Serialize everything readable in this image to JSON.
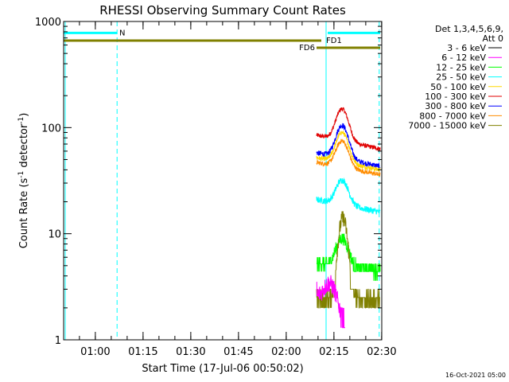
{
  "chart_data": {
    "type": "line",
    "title": "RHESSI Observing Summary Count Rates",
    "xlabel": "Start Time (17-Jul-06 00:50:02)",
    "ylabel_main": "Count Rate (s",
    "ylabel_sup1": "-1",
    "ylabel_mid": " detector",
    "ylabel_sup2": "-1",
    "ylabel_end": ")",
    "yscale": "log",
    "ylim": [
      1,
      1000
    ],
    "xlim_minutes": [
      0,
      100
    ],
    "yticks": [
      {
        "value": 1,
        "label": "1"
      },
      {
        "value": 10,
        "label": "10"
      },
      {
        "value": 100,
        "label": "100"
      },
      {
        "value": 1000,
        "label": "1000"
      }
    ],
    "xticks": [
      {
        "minute": 9.97,
        "label": "01:00"
      },
      {
        "minute": 24.97,
        "label": "01:15"
      },
      {
        "minute": 39.97,
        "label": "01:30"
      },
      {
        "minute": 54.97,
        "label": "01:45"
      },
      {
        "minute": 69.97,
        "label": "02:00"
      },
      {
        "minute": 84.97,
        "label": "02:15"
      },
      {
        "minute": 99.97,
        "label": "02:30"
      }
    ],
    "legend": {
      "placement": "right",
      "header_line1": "Det 1,3,4,5,6,9,",
      "header_line2": "Att 0",
      "entries": [
        {
          "label": "3 - 6 keV",
          "color": "#000000"
        },
        {
          "label": "6 - 12 keV",
          "color": "#ff00ff"
        },
        {
          "label": "12 - 25 keV",
          "color": "#00ff00"
        },
        {
          "label": "25 - 50 keV",
          "color": "#00ffff"
        },
        {
          "label": "50 - 100 keV",
          "color": "#ffd700"
        },
        {
          "label": "100 - 300 keV",
          "color": "#e00000"
        },
        {
          "label": "300 - 800 keV",
          "color": "#0000ff"
        },
        {
          "label": "800 - 7000 keV",
          "color": "#ff8c00"
        },
        {
          "label": "7000 - 15000 keV",
          "color": "#808000"
        }
      ]
    },
    "vlines": [
      {
        "minute": 0.5,
        "style": "solid",
        "color": "#00ffff"
      },
      {
        "minute": 16.8,
        "style": "dashed",
        "color": "#00ffff"
      },
      {
        "minute": 82.5,
        "style": "solid",
        "color": "#00ffff"
      },
      {
        "minute": 99.2,
        "style": "dashed",
        "color": "#00ffff"
      }
    ],
    "bars": [
      {
        "label": "N",
        "color": "#00ffff",
        "y": 780,
        "x_start": 0,
        "x_end": 16.8,
        "label_at": 17.5,
        "label_side": "right"
      },
      {
        "label": "",
        "color": "#00ffff",
        "y": 780,
        "x_start": 83,
        "x_end": 99.5
      },
      {
        "label": "FD1",
        "color": "#808000",
        "y": 660,
        "x_start": 0,
        "x_end": 81,
        "label_at": 82.5,
        "label_side": "right"
      },
      {
        "label": "FD6",
        "color": "#808000",
        "y": 565,
        "x_start": 79.5,
        "x_end": 99.5,
        "label_at": 79,
        "label_side": "left"
      }
    ],
    "series": [
      {
        "band": "100 - 300 keV",
        "color": "#e00000",
        "x_start": 79.5,
        "x_end": 99.5,
        "baseline": 85,
        "end_value": 63,
        "peak": 150,
        "peak_at": 87.5,
        "width": 1.8,
        "noise": 0.05
      },
      {
        "band": "300 - 800 keV",
        "color": "#0000ff",
        "x_start": 79.5,
        "x_end": 99.5,
        "baseline": 58,
        "end_value": 43,
        "peak": 105,
        "peak_at": 87.5,
        "width": 1.8,
        "noise": 0.06
      },
      {
        "band": "50 - 100 keV",
        "color": "#ffd700",
        "x_start": 79.5,
        "x_end": 99.5,
        "baseline": 52,
        "end_value": 40,
        "peak": 90,
        "peak_at": 87.5,
        "width": 1.8,
        "noise": 0.05
      },
      {
        "band": "800 - 7000 keV",
        "color": "#ff8c00",
        "x_start": 79.5,
        "x_end": 99.5,
        "baseline": 47,
        "end_value": 36,
        "peak": 75,
        "peak_at": 87.5,
        "width": 1.8,
        "noise": 0.05
      },
      {
        "band": "25 - 50 keV",
        "color": "#00ffff",
        "x_start": 79.5,
        "x_end": 99.5,
        "baseline": 21,
        "end_value": 16,
        "peak": 32,
        "peak_at": 87.5,
        "width": 1.8,
        "noise": 0.07
      },
      {
        "band": "12 - 25 keV",
        "color": "#00ff00",
        "x_start": 79.5,
        "x_end": 99.5,
        "baseline": 5.2,
        "end_value": 4.5,
        "peak": 9,
        "peak_at": 87.5,
        "width": 1.8,
        "noise": 0.14,
        "quantized": [
          3.6,
          4.4,
          5.2,
          6.0
        ]
      },
      {
        "band": "7000 - 15000 keV",
        "color": "#808000",
        "x_start": 79.5,
        "x_end": 99.5,
        "baseline": 2.4,
        "end_value": 2.4,
        "peak": 14,
        "peak_at": 87.8,
        "width": 1.3,
        "noise": 0.18,
        "quantized": [
          2.0,
          2.5,
          3.0
        ]
      },
      {
        "band": "6 - 12 keV",
        "color": "#ff00ff",
        "x_start": 79.5,
        "x_end": 88.5,
        "baseline": 2.6,
        "end_value": 1.3,
        "peak": 3.4,
        "peak_at": 83.5,
        "width": 2.0,
        "noise": 0.2,
        "quantized": [
          1.3,
          2.0,
          2.6,
          3.5
        ]
      }
    ]
  },
  "footer": {
    "date_stamp": "16-Oct-2021 05:00"
  }
}
